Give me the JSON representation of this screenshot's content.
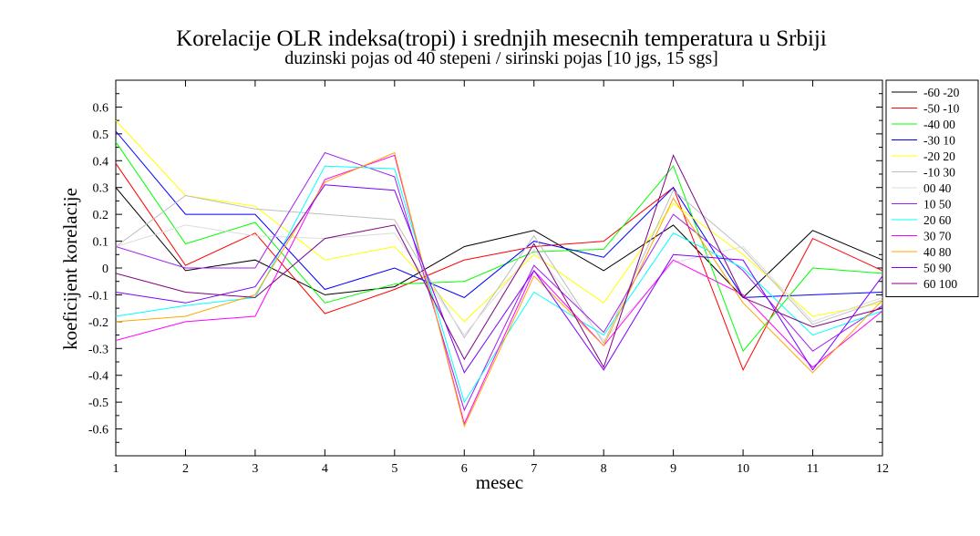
{
  "chart_data": {
    "type": "line",
    "title": "Korelacije OLR indeksa(tropi) i srednjih mesecnih temperatura u Srbiji",
    "subtitle": "duzinski pojas od 40 stepeni / sirinski pojas [10 jgs, 15 sgs]",
    "xlabel": "mesec",
    "ylabel": "koeficijent korelacije",
    "xlim": [
      1,
      12
    ],
    "ylim": [
      -0.7,
      0.7
    ],
    "x": [
      1,
      2,
      3,
      4,
      5,
      6,
      7,
      8,
      9,
      10,
      11,
      12
    ],
    "xticks": [
      "1",
      "2",
      "3",
      "4",
      "5",
      "6",
      "7",
      "8",
      "9",
      "10",
      "11",
      "12"
    ],
    "yticks": [
      "-0.6",
      "-0.5",
      "-0.4",
      "-0.3",
      "-0.2",
      "-0.1",
      "0",
      "0.1",
      "0.2",
      "0.3",
      "0.4",
      "0.5",
      "0.6"
    ],
    "grid": false,
    "legend_position": "right",
    "series": [
      {
        "name": "-60 -20",
        "color": "#000000",
        "values": [
          0.3,
          -0.01,
          0.03,
          -0.1,
          -0.07,
          0.08,
          0.14,
          -0.01,
          0.16,
          -0.11,
          0.14,
          0.03
        ]
      },
      {
        "name": "-50 -10",
        "color": "#ff0000",
        "values": [
          0.39,
          0.01,
          0.13,
          -0.17,
          -0.08,
          0.03,
          0.08,
          0.1,
          0.3,
          -0.38,
          0.11,
          -0.01
        ]
      },
      {
        "name": "-40 00",
        "color": "#00ff00",
        "values": [
          0.47,
          0.09,
          0.17,
          -0.13,
          -0.06,
          -0.05,
          0.06,
          0.07,
          0.38,
          -0.31,
          0.0,
          -0.02
        ]
      },
      {
        "name": "-30 10",
        "color": "#0000ff",
        "values": [
          0.51,
          0.2,
          0.2,
          -0.08,
          0.0,
          -0.11,
          0.1,
          0.04,
          0.3,
          -0.11,
          -0.1,
          -0.09
        ]
      },
      {
        "name": "-20 20",
        "color": "#ffff00",
        "values": [
          0.55,
          0.27,
          0.23,
          0.03,
          0.08,
          -0.2,
          0.05,
          -0.13,
          0.24,
          0.05,
          -0.18,
          -0.13
        ]
      },
      {
        "name": "-10 30",
        "color": "#bebebe",
        "values": [
          0.08,
          0.27,
          0.22,
          0.2,
          0.18,
          -0.26,
          0.12,
          -0.28,
          0.29,
          0.07,
          -0.21,
          -0.12
        ]
      },
      {
        "name": "00 40",
        "color": "#dcdcdc",
        "values": [
          0.08,
          0.16,
          0.12,
          0.11,
          0.13,
          -0.25,
          0.07,
          -0.27,
          0.02,
          0.08,
          -0.2,
          -0.11
        ]
      },
      {
        "name": "10 50",
        "color": "#a020f0",
        "values": [
          0.08,
          0.0,
          0.0,
          0.43,
          0.34,
          -0.53,
          0.01,
          -0.24,
          0.2,
          -0.01,
          -0.31,
          -0.14
        ]
      },
      {
        "name": "20 60",
        "color": "#00ffff",
        "values": [
          -0.18,
          -0.14,
          -0.11,
          0.38,
          0.37,
          -0.5,
          -0.09,
          -0.25,
          0.13,
          0.0,
          -0.25,
          -0.16
        ]
      },
      {
        "name": "30 70",
        "color": "#ff00ff",
        "values": [
          -0.27,
          -0.2,
          -0.18,
          0.33,
          0.42,
          -0.58,
          -0.01,
          -0.29,
          0.03,
          -0.1,
          -0.37,
          -0.16
        ]
      },
      {
        "name": "40 80",
        "color": "#ffa500",
        "values": [
          -0.2,
          -0.18,
          -0.1,
          0.32,
          0.43,
          -0.59,
          -0.03,
          -0.29,
          0.26,
          -0.13,
          -0.39,
          -0.12
        ]
      },
      {
        "name": "50 90",
        "color": "#7a00ff",
        "values": [
          -0.09,
          -0.13,
          -0.07,
          0.31,
          0.29,
          -0.39,
          -0.01,
          -0.38,
          0.05,
          0.03,
          -0.38,
          -0.03
        ]
      },
      {
        "name": "60 100",
        "color": "#800080",
        "values": [
          -0.02,
          -0.09,
          -0.11,
          0.11,
          0.16,
          -0.34,
          0.09,
          -0.37,
          0.42,
          -0.11,
          -0.22,
          -0.15
        ]
      }
    ]
  }
}
